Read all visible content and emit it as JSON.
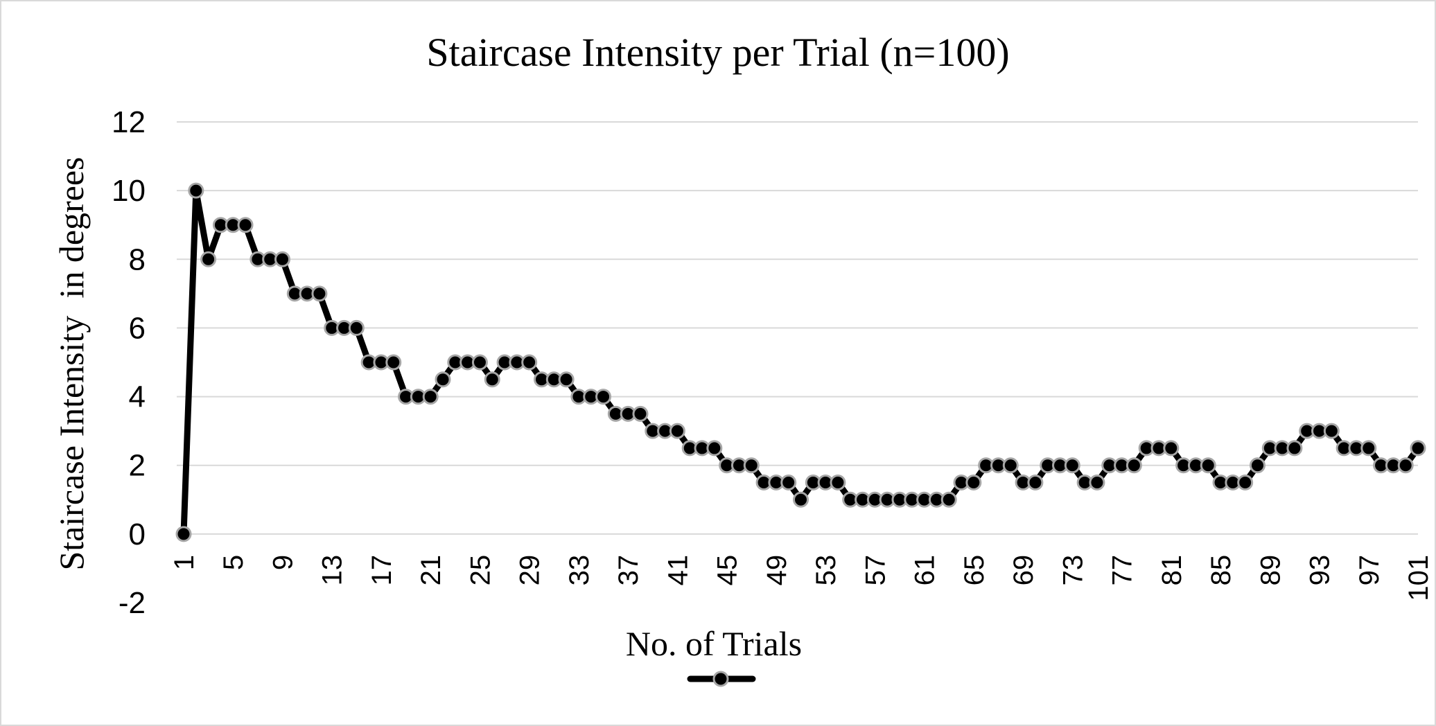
{
  "chart_data": {
    "type": "line",
    "title": "Staircase Intensity per Trial (n=100)",
    "xlabel": "No. of Trials",
    "ylabel": "Staircase Intensity  in degrees",
    "ylim": [
      -2,
      12
    ],
    "yticks": [
      -2,
      0,
      2,
      4,
      6,
      8,
      10,
      12
    ],
    "xticks": [
      1,
      5,
      9,
      13,
      17,
      21,
      25,
      29,
      33,
      37,
      41,
      45,
      49,
      53,
      57,
      61,
      65,
      69,
      73,
      77,
      81,
      85,
      89,
      93,
      97,
      101
    ],
    "grid": true,
    "legend": "bottom",
    "colors": {
      "line": "#000000",
      "marker_fill": "#000000",
      "marker_edge": "#a6a6a6",
      "grid": "#d9d9d9"
    },
    "series": [
      {
        "name": "",
        "x": [
          1,
          2,
          3,
          4,
          5,
          6,
          7,
          8,
          9,
          10,
          11,
          12,
          13,
          14,
          15,
          16,
          17,
          18,
          19,
          20,
          21,
          22,
          23,
          24,
          25,
          26,
          27,
          28,
          29,
          30,
          31,
          32,
          33,
          34,
          35,
          36,
          37,
          38,
          39,
          40,
          41,
          42,
          43,
          44,
          45,
          46,
          47,
          48,
          49,
          50,
          51,
          52,
          53,
          54,
          55,
          56,
          57,
          58,
          59,
          60,
          61,
          62,
          63,
          64,
          65,
          66,
          67,
          68,
          69,
          70,
          71,
          72,
          73,
          74,
          75,
          76,
          77,
          78,
          79,
          80,
          81,
          82,
          83,
          84,
          85,
          86,
          87,
          88,
          89,
          90,
          91,
          92,
          93,
          94,
          95,
          96,
          97,
          98,
          99,
          100,
          101
        ],
        "values": [
          0,
          10,
          8,
          9,
          9,
          9,
          8,
          8,
          8,
          7,
          7,
          7,
          6,
          6,
          6,
          5,
          5,
          5,
          4,
          4,
          4,
          4.5,
          5,
          5,
          5,
          4.5,
          5,
          5,
          5,
          4.5,
          4.5,
          4.5,
          4,
          4,
          4,
          3.5,
          3.5,
          3.5,
          3,
          3,
          3,
          2.5,
          2.5,
          2.5,
          2,
          2,
          2,
          1.5,
          1.5,
          1.5,
          1,
          1.5,
          1.5,
          1.5,
          1,
          1,
          1,
          1,
          1,
          1,
          1,
          1,
          1,
          1.5,
          1.5,
          2,
          2,
          2,
          1.5,
          1.5,
          2,
          2,
          2,
          1.5,
          1.5,
          2,
          2,
          2,
          2.5,
          2.5,
          2.5,
          2,
          2,
          2,
          1.5,
          1.5,
          1.5,
          2,
          2.5,
          2.5,
          2.5,
          3,
          3,
          3,
          2.5,
          2.5,
          2.5,
          2,
          2,
          2,
          2.5
        ]
      }
    ]
  }
}
